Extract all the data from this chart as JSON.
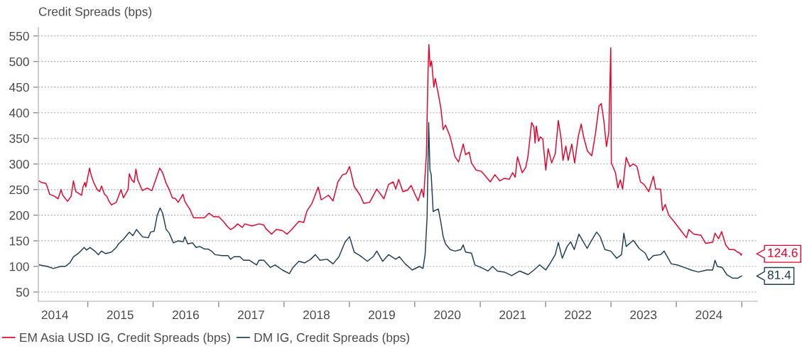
{
  "chart_data": {
    "type": "line",
    "title": "Credit Spreads (bps)",
    "xlim": [
      "2014-03-31",
      "2025-03-28"
    ],
    "xticks": [
      {
        "value": "2014-07-01",
        "label": "2014"
      },
      {
        "value": "2015-07-01",
        "label": "2015"
      },
      {
        "value": "2016-07-01",
        "label": "2016"
      },
      {
        "value": "2017-07-01",
        "label": "2017"
      },
      {
        "value": "2018-07-01",
        "label": "2018"
      },
      {
        "value": "2019-07-01",
        "label": "2019"
      },
      {
        "value": "2020-07-01",
        "label": "2020"
      },
      {
        "value": "2021-07-01",
        "label": "2021"
      },
      {
        "value": "2022-07-01",
        "label": "2022"
      },
      {
        "value": "2023-07-01",
        "label": "2023"
      },
      {
        "value": "2024-07-01",
        "label": "2024"
      },
      {
        "value": "2015-01-01",
        "label": null
      },
      {
        "value": "2016-01-01",
        "label": null
      },
      {
        "value": "2017-01-01",
        "label": null
      },
      {
        "value": "2018-01-01",
        "label": null
      },
      {
        "value": "2019-01-01",
        "label": null
      },
      {
        "value": "2020-01-01",
        "label": null
      },
      {
        "value": "2021-01-01",
        "label": null
      },
      {
        "value": "2022-01-01",
        "label": null
      },
      {
        "value": "2023-01-01",
        "label": null
      },
      {
        "value": "2024-01-01",
        "label": null
      },
      {
        "value": "2025-01-01",
        "label": null
      }
    ],
    "ylim": [
      32,
      566
    ],
    "yticks": [
      50,
      100,
      150,
      200,
      250,
      300,
      350,
      400,
      450,
      500,
      550
    ],
    "grid": "y",
    "legend": "bottom left",
    "series": [
      {
        "name": "EM Asia USD IG, Credit Spreads (bps)",
        "color": "#e4002b",
        "x": [
          "2014-04-04",
          "2014-04-17",
          "2014-05-13",
          "2014-06-02",
          "2014-06-29",
          "2014-07-19",
          "2014-08-05",
          "2014-08-14",
          "2014-09-10",
          "2014-09-30",
          "2014-10-13",
          "2014-10-26",
          "2014-11-28",
          "2014-12-05",
          "2014-12-16",
          "2014-12-21",
          "2015-01-11",
          "2015-01-20",
          "2015-02-03",
          "2015-02-23",
          "2015-03-08",
          "2015-03-19",
          "2015-04-04",
          "2015-04-17",
          "2015-04-30",
          "2015-05-13",
          "2015-06-09",
          "2015-07-06",
          "2015-07-19",
          "2015-08-14",
          "2015-08-21",
          "2015-09-03",
          "2015-09-17",
          "2015-09-27",
          "2015-10-07",
          "2015-11-02",
          "2015-11-28",
          "2015-12-25",
          "2016-01-01",
          "2016-01-20",
          "2016-02-07",
          "2016-02-23",
          "2016-03-14",
          "2016-03-31",
          "2016-04-17",
          "2016-05-06",
          "2016-05-20",
          "2016-06-16",
          "2016-06-26",
          "2016-07-12",
          "2016-07-25",
          "2016-08-14",
          "2016-09-17",
          "2016-10-13",
          "2016-11-08",
          "2016-12-05",
          "2017-01-01",
          "2017-01-27",
          "2017-02-16",
          "2017-03-08",
          "2017-03-28",
          "2017-04-17",
          "2017-05-13",
          "2017-05-27",
          "2017-07-06",
          "2017-08-14",
          "2017-09-10",
          "2017-09-21",
          "2017-10-24",
          "2017-11-19",
          "2017-12-23",
          "2018-01-18",
          "2018-02-13",
          "2018-03-25",
          "2018-04-21",
          "2018-05-10",
          "2018-06-06",
          "2018-07-11",
          "2018-07-28",
          "2018-09-06",
          "2018-10-02",
          "2018-10-29",
          "2018-11-24",
          "2018-12-14",
          "2019-01-02",
          "2019-01-28",
          "2019-03-02",
          "2019-03-22",
          "2019-04-24",
          "2019-06-03",
          "2019-07-13",
          "2019-08-08",
          "2019-09-03",
          "2019-09-17",
          "2019-10-03",
          "2019-10-27",
          "2019-11-22",
          "2019-12-12",
          "2020-01-01",
          "2020-01-20",
          "2020-02-09",
          "2020-02-20",
          "2020-02-28",
          "2020-03-06",
          "2020-03-15",
          "2020-03-20",
          "2020-03-27",
          "2020-04-04",
          "2020-04-17",
          "2020-04-25",
          "2020-05-12",
          "2020-05-26",
          "2020-06-08",
          "2020-06-21",
          "2020-07-17",
          "2020-08-13",
          "2020-09-02",
          "2020-09-28",
          "2020-10-11",
          "2020-10-31",
          "2020-11-13",
          "2020-12-09",
          "2021-01-05",
          "2021-01-24",
          "2021-02-26",
          "2021-03-24",
          "2021-04-20",
          "2021-05-16",
          "2021-06-12",
          "2021-07-01",
          "2021-07-15",
          "2021-07-28",
          "2021-08-23",
          "2021-09-12",
          "2021-09-25",
          "2021-10-15",
          "2021-10-28",
          "2021-11-03",
          "2021-11-10",
          "2021-11-23",
          "2021-12-02",
          "2021-12-16",
          "2022-01-02",
          "2022-01-15",
          "2022-02-04",
          "2022-02-24",
          "2022-03-13",
          "2022-03-29",
          "2022-04-08",
          "2022-04-24",
          "2022-05-07",
          "2022-05-27",
          "2022-06-12",
          "2022-07-02",
          "2022-07-19",
          "2022-08-01",
          "2022-08-23",
          "2022-09-16",
          "2022-10-06",
          "2022-10-26",
          "2022-11-08",
          "2022-11-22",
          "2022-12-07",
          "2022-12-20",
          "2022-12-31",
          "2023-01-03",
          "2023-01-26",
          "2023-02-09",
          "2023-02-22",
          "2023-03-07",
          "2023-03-27",
          "2023-04-16",
          "2023-05-06",
          "2023-05-26",
          "2023-06-15",
          "2023-07-05",
          "2023-07-31",
          "2023-08-26",
          "2023-09-08",
          "2023-10-05",
          "2023-10-16",
          "2023-10-31",
          "2023-11-20",
          "2023-12-23",
          "2024-01-31",
          "2024-02-27",
          "2024-03-11",
          "2024-04-07",
          "2024-05-17",
          "2024-06-13",
          "2024-07-22",
          "2024-08-04",
          "2024-08-24",
          "2024-09-10",
          "2024-10-03",
          "2024-10-23",
          "2024-11-18",
          "2024-12-08",
          "2024-12-21",
          "2024-12-28",
          "2024-12-31"
        ],
        "values": [
          267,
          264,
          262,
          241,
          237,
          232,
          250,
          239,
          227,
          237,
          267,
          246,
          239,
          255,
          264,
          255,
          292,
          278,
          264,
          250,
          246,
          257,
          241,
          237,
          227,
          220,
          225,
          250,
          234,
          250,
          281,
          269,
          264,
          290,
          269,
          248,
          253,
          248,
          255,
          274,
          292,
          283,
          262,
          250,
          234,
          232,
          225,
          241,
          227,
          218,
          211,
          195,
          195,
          195,
          204,
          197,
          197,
          188,
          179,
          172,
          176,
          183,
          176,
          183,
          179,
          183,
          181,
          174,
          163,
          172,
          170,
          163,
          172,
          188,
          186,
          209,
          223,
          255,
          230,
          239,
          228,
          265,
          279,
          281,
          295,
          256,
          239,
          223,
          225,
          251,
          232,
          260,
          265,
          251,
          270,
          246,
          249,
          258,
          242,
          228,
          251,
          235,
          279,
          316,
          474,
          533,
          490,
          501,
          450,
          467,
          436,
          409,
          367,
          376,
          353,
          314,
          304,
          339,
          318,
          323,
          302,
          288,
          286,
          279,
          265,
          279,
          267,
          272,
          270,
          283,
          274,
          314,
          283,
          293,
          316,
          381,
          372,
          341,
          374,
          344,
          353,
          349,
          288,
          330,
          302,
          320,
          385,
          349,
          307,
          335,
          307,
          339,
          302,
          353,
          378,
          353,
          325,
          316,
          358,
          413,
          418,
          385,
          334,
          362,
          527,
          302,
          283,
          253,
          269,
          251,
          313,
          295,
          300,
          295,
          265,
          260,
          246,
          276,
          251,
          251,
          209,
          221,
          200,
          186,
          168,
          156,
          172,
          163,
          161,
          145,
          147,
          165,
          154,
          168,
          142,
          133,
          133,
          128,
          126,
          122,
          124.6
        ]
      },
      {
        "name": "DM IG, Credit Spreads (bps)",
        "color": "#1f3d50",
        "x": [
          "2014-04-04",
          "2014-05-20",
          "2014-06-23",
          "2014-08-01",
          "2014-08-28",
          "2014-09-23",
          "2014-10-13",
          "2014-11-08",
          "2014-12-12",
          "2014-12-25",
          "2015-01-14",
          "2015-02-09",
          "2015-03-01",
          "2015-03-19",
          "2015-04-10",
          "2015-05-13",
          "2015-06-09",
          "2015-06-22",
          "2015-07-19",
          "2015-08-21",
          "2015-09-10",
          "2015-09-30",
          "2015-11-02",
          "2015-12-05",
          "2015-12-18",
          "2016-01-07",
          "2016-01-24",
          "2016-02-09",
          "2016-02-23",
          "2016-03-14",
          "2016-03-31",
          "2016-04-23",
          "2016-05-20",
          "2016-06-16",
          "2016-06-26",
          "2016-07-12",
          "2016-08-08",
          "2016-08-28",
          "2016-09-17",
          "2016-10-13",
          "2016-11-02",
          "2016-11-22",
          "2016-12-12",
          "2017-01-20",
          "2017-02-23",
          "2017-03-08",
          "2017-03-28",
          "2017-04-30",
          "2017-05-20",
          "2017-06-22",
          "2017-08-01",
          "2017-08-14",
          "2017-09-10",
          "2017-10-17",
          "2017-11-12",
          "2017-12-23",
          "2018-01-31",
          "2018-02-20",
          "2018-03-25",
          "2018-04-27",
          "2018-05-30",
          "2018-06-25",
          "2018-07-21",
          "2018-08-30",
          "2018-10-02",
          "2018-11-04",
          "2018-12-07",
          "2019-01-02",
          "2019-01-28",
          "2019-03-02",
          "2019-04-11",
          "2019-05-14",
          "2019-06-03",
          "2019-07-06",
          "2019-08-08",
          "2019-09-17",
          "2019-10-07",
          "2019-11-09",
          "2019-12-18",
          "2020-01-27",
          "2020-02-16",
          "2020-02-28",
          "2020-03-10",
          "2020-03-19",
          "2020-03-26",
          "2020-04-02",
          "2020-04-13",
          "2020-04-22",
          "2020-05-12",
          "2020-05-26",
          "2020-06-08",
          "2020-06-21",
          "2020-07-17",
          "2020-08-13",
          "2020-09-15",
          "2020-09-28",
          "2020-10-11",
          "2020-11-13",
          "2020-12-02",
          "2021-01-05",
          "2021-02-13",
          "2021-03-11",
          "2021-04-07",
          "2021-05-16",
          "2021-06-25",
          "2021-08-10",
          "2021-09-25",
          "2021-10-28",
          "2021-11-29",
          "2022-01-02",
          "2022-01-28",
          "2022-02-24",
          "2022-03-13",
          "2022-04-04",
          "2022-05-01",
          "2022-05-21",
          "2022-06-10",
          "2022-07-06",
          "2022-07-26",
          "2022-08-21",
          "2022-09-10",
          "2022-10-13",
          "2022-11-02",
          "2022-11-28",
          "2022-12-31",
          "2023-02-02",
          "2023-03-01",
          "2023-03-14",
          "2023-03-27",
          "2023-05-06",
          "2023-06-08",
          "2023-07-11",
          "2023-07-31",
          "2023-08-26",
          "2023-10-05",
          "2023-10-25",
          "2023-12-04",
          "2024-01-05",
          "2024-02-14",
          "2024-03-24",
          "2024-05-03",
          "2024-06-19",
          "2024-07-22",
          "2024-08-04",
          "2024-08-17",
          "2024-09-13",
          "2024-10-09",
          "2024-11-11",
          "2024-12-08",
          "2024-12-31"
        ],
        "values": [
          103,
          100,
          96,
          100,
          100,
          107,
          119,
          125,
          137,
          132,
          137,
          130,
          123,
          130,
          125,
          128,
          137,
          144,
          153,
          167,
          160,
          172,
          158,
          156,
          167,
          169,
          200,
          214,
          204,
          172,
          165,
          146,
          150,
          148,
          158,
          144,
          146,
          137,
          139,
          134,
          134,
          130,
          123,
          121,
          121,
          114,
          119,
          119,
          112,
          112,
          103,
          112,
          112,
          98,
          103,
          93,
          86,
          98,
          110,
          107,
          114,
          123,
          112,
          114,
          105,
          119,
          147,
          158,
          128,
          121,
          110,
          119,
          130,
          110,
          123,
          114,
          119,
          105,
          93,
          100,
          96,
          123,
          195,
          381,
          288,
          279,
          207,
          209,
          212,
          186,
          158,
          144,
          133,
          130,
          133,
          142,
          128,
          126,
          103,
          98,
          91,
          100,
          91,
          89,
          82,
          91,
          84,
          93,
          103,
          93,
          107,
          123,
          147,
          116,
          139,
          148,
          133,
          163,
          151,
          135,
          148,
          167,
          158,
          133,
          130,
          116,
          123,
          165,
          139,
          151,
          135,
          126,
          112,
          121,
          123,
          130,
          105,
          103,
          98,
          93,
          89,
          93,
          93,
          112,
          100,
          98,
          84,
          77,
          77,
          81.4
        ]
      }
    ],
    "annotations": [
      {
        "text": "124.6",
        "x": "2024-12-31",
        "y": 124.6
      },
      {
        "text": "81.4",
        "x": "2024-12-31",
        "y": 81.4
      }
    ]
  }
}
